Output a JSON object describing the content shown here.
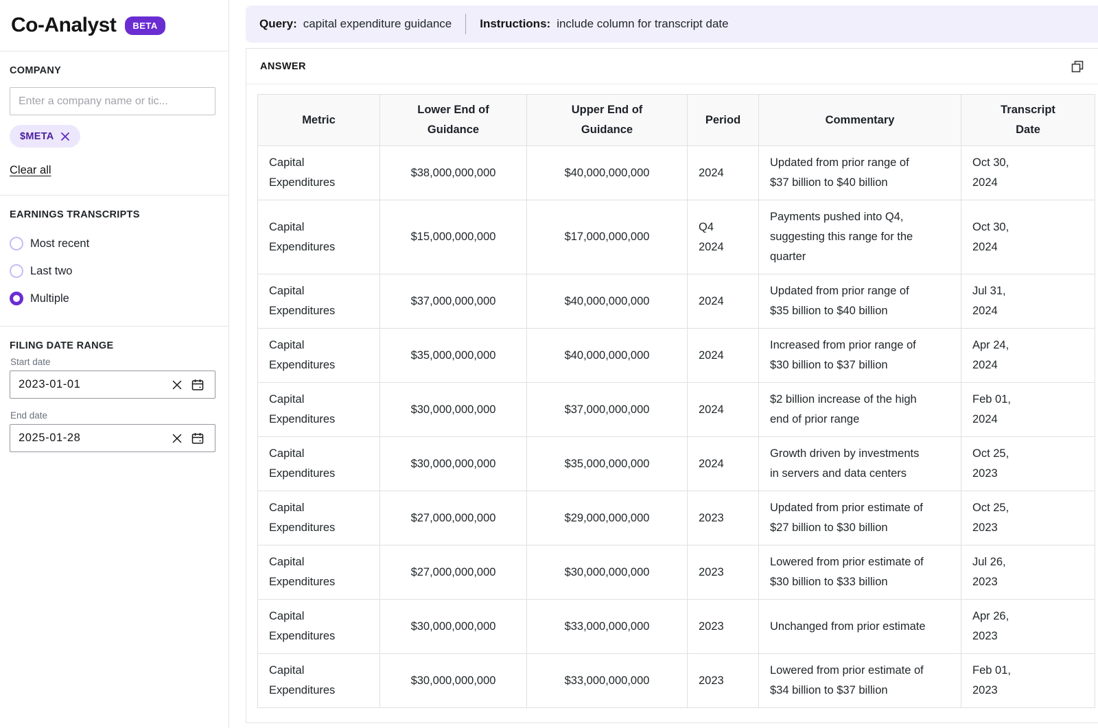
{
  "app": {
    "title": "Co-Analyst",
    "beta_label": "BETA"
  },
  "colors": {
    "accent_purple": "#6a2dd2",
    "chip_background": "#ece7fc",
    "chip_text": "#4b1f9e",
    "query_bar_background": "#f1effc",
    "table_header_background": "#f9f9fa",
    "table_border": "#e0e0e4"
  },
  "sidebar": {
    "company": {
      "label": "COMPANY",
      "placeholder": "Enter a company name or tic...",
      "chips": [
        {
          "label": "$META",
          "remove_icon": "x-icon"
        }
      ],
      "clear_all_label": "Clear all"
    },
    "transcripts": {
      "label": "EARNINGS TRANSCRIPTS",
      "options": [
        {
          "label": "Most recent",
          "selected": false
        },
        {
          "label": "Last two",
          "selected": false
        },
        {
          "label": "Multiple",
          "selected": true
        }
      ]
    },
    "date_range": {
      "label": "FILING DATE RANGE",
      "start": {
        "label": "Start date",
        "value": "2023-01-01",
        "icons": [
          "clear-x-icon",
          "calendar-icon"
        ]
      },
      "end": {
        "label": "End date",
        "value": "2025-01-28",
        "icons": [
          "clear-x-icon",
          "calendar-icon"
        ]
      }
    }
  },
  "query_bar": {
    "query_label": "Query:",
    "query_value": "capital expenditure guidance",
    "instructions_label": "Instructions:",
    "instructions_value": "include column for transcript date"
  },
  "answer": {
    "label": "ANSWER",
    "copy_icon": "copy-icon",
    "table": {
      "columns": [
        "Metric",
        "Lower End of\nGuidance",
        "Upper End of\nGuidance",
        "Period",
        "Commentary",
        "Transcript\nDate"
      ],
      "rows": [
        [
          "Capital\nExpenditures",
          "$38,000,000,000",
          "$40,000,000,000",
          "2024",
          "Updated from prior range of\n$37 billion to $40 billion",
          "Oct 30,\n2024"
        ],
        [
          "Capital\nExpenditures",
          "$15,000,000,000",
          "$17,000,000,000",
          "Q4\n2024",
          "Payments pushed into Q4,\nsuggesting this range for the\nquarter",
          "Oct 30,\n2024"
        ],
        [
          "Capital\nExpenditures",
          "$37,000,000,000",
          "$40,000,000,000",
          "2024",
          "Updated from prior range of\n$35 billion to $40 billion",
          "Jul 31,\n2024"
        ],
        [
          "Capital\nExpenditures",
          "$35,000,000,000",
          "$40,000,000,000",
          "2024",
          "Increased from prior range of\n$30 billion to $37 billion",
          "Apr 24,\n2024"
        ],
        [
          "Capital\nExpenditures",
          "$30,000,000,000",
          "$37,000,000,000",
          "2024",
          "$2 billion increase of the high\nend of prior range",
          "Feb 01,\n2024"
        ],
        [
          "Capital\nExpenditures",
          "$30,000,000,000",
          "$35,000,000,000",
          "2024",
          "Growth driven by investments\nin servers and data centers",
          "Oct 25,\n2023"
        ],
        [
          "Capital\nExpenditures",
          "$27,000,000,000",
          "$29,000,000,000",
          "2023",
          "Updated from prior estimate of\n$27 billion to $30 billion",
          "Oct 25,\n2023"
        ],
        [
          "Capital\nExpenditures",
          "$27,000,000,000",
          "$30,000,000,000",
          "2023",
          "Lowered from prior estimate of\n$30 billion to $33 billion",
          "Jul 26,\n2023"
        ],
        [
          "Capital\nExpenditures",
          "$30,000,000,000",
          "$33,000,000,000",
          "2023",
          "Unchanged from prior estimate",
          "Apr 26,\n2023"
        ],
        [
          "Capital\nExpenditures",
          "$30,000,000,000",
          "$33,000,000,000",
          "2023",
          "Lowered from prior estimate of\n$34 billion to $37 billion",
          "Feb 01,\n2023"
        ]
      ]
    }
  }
}
